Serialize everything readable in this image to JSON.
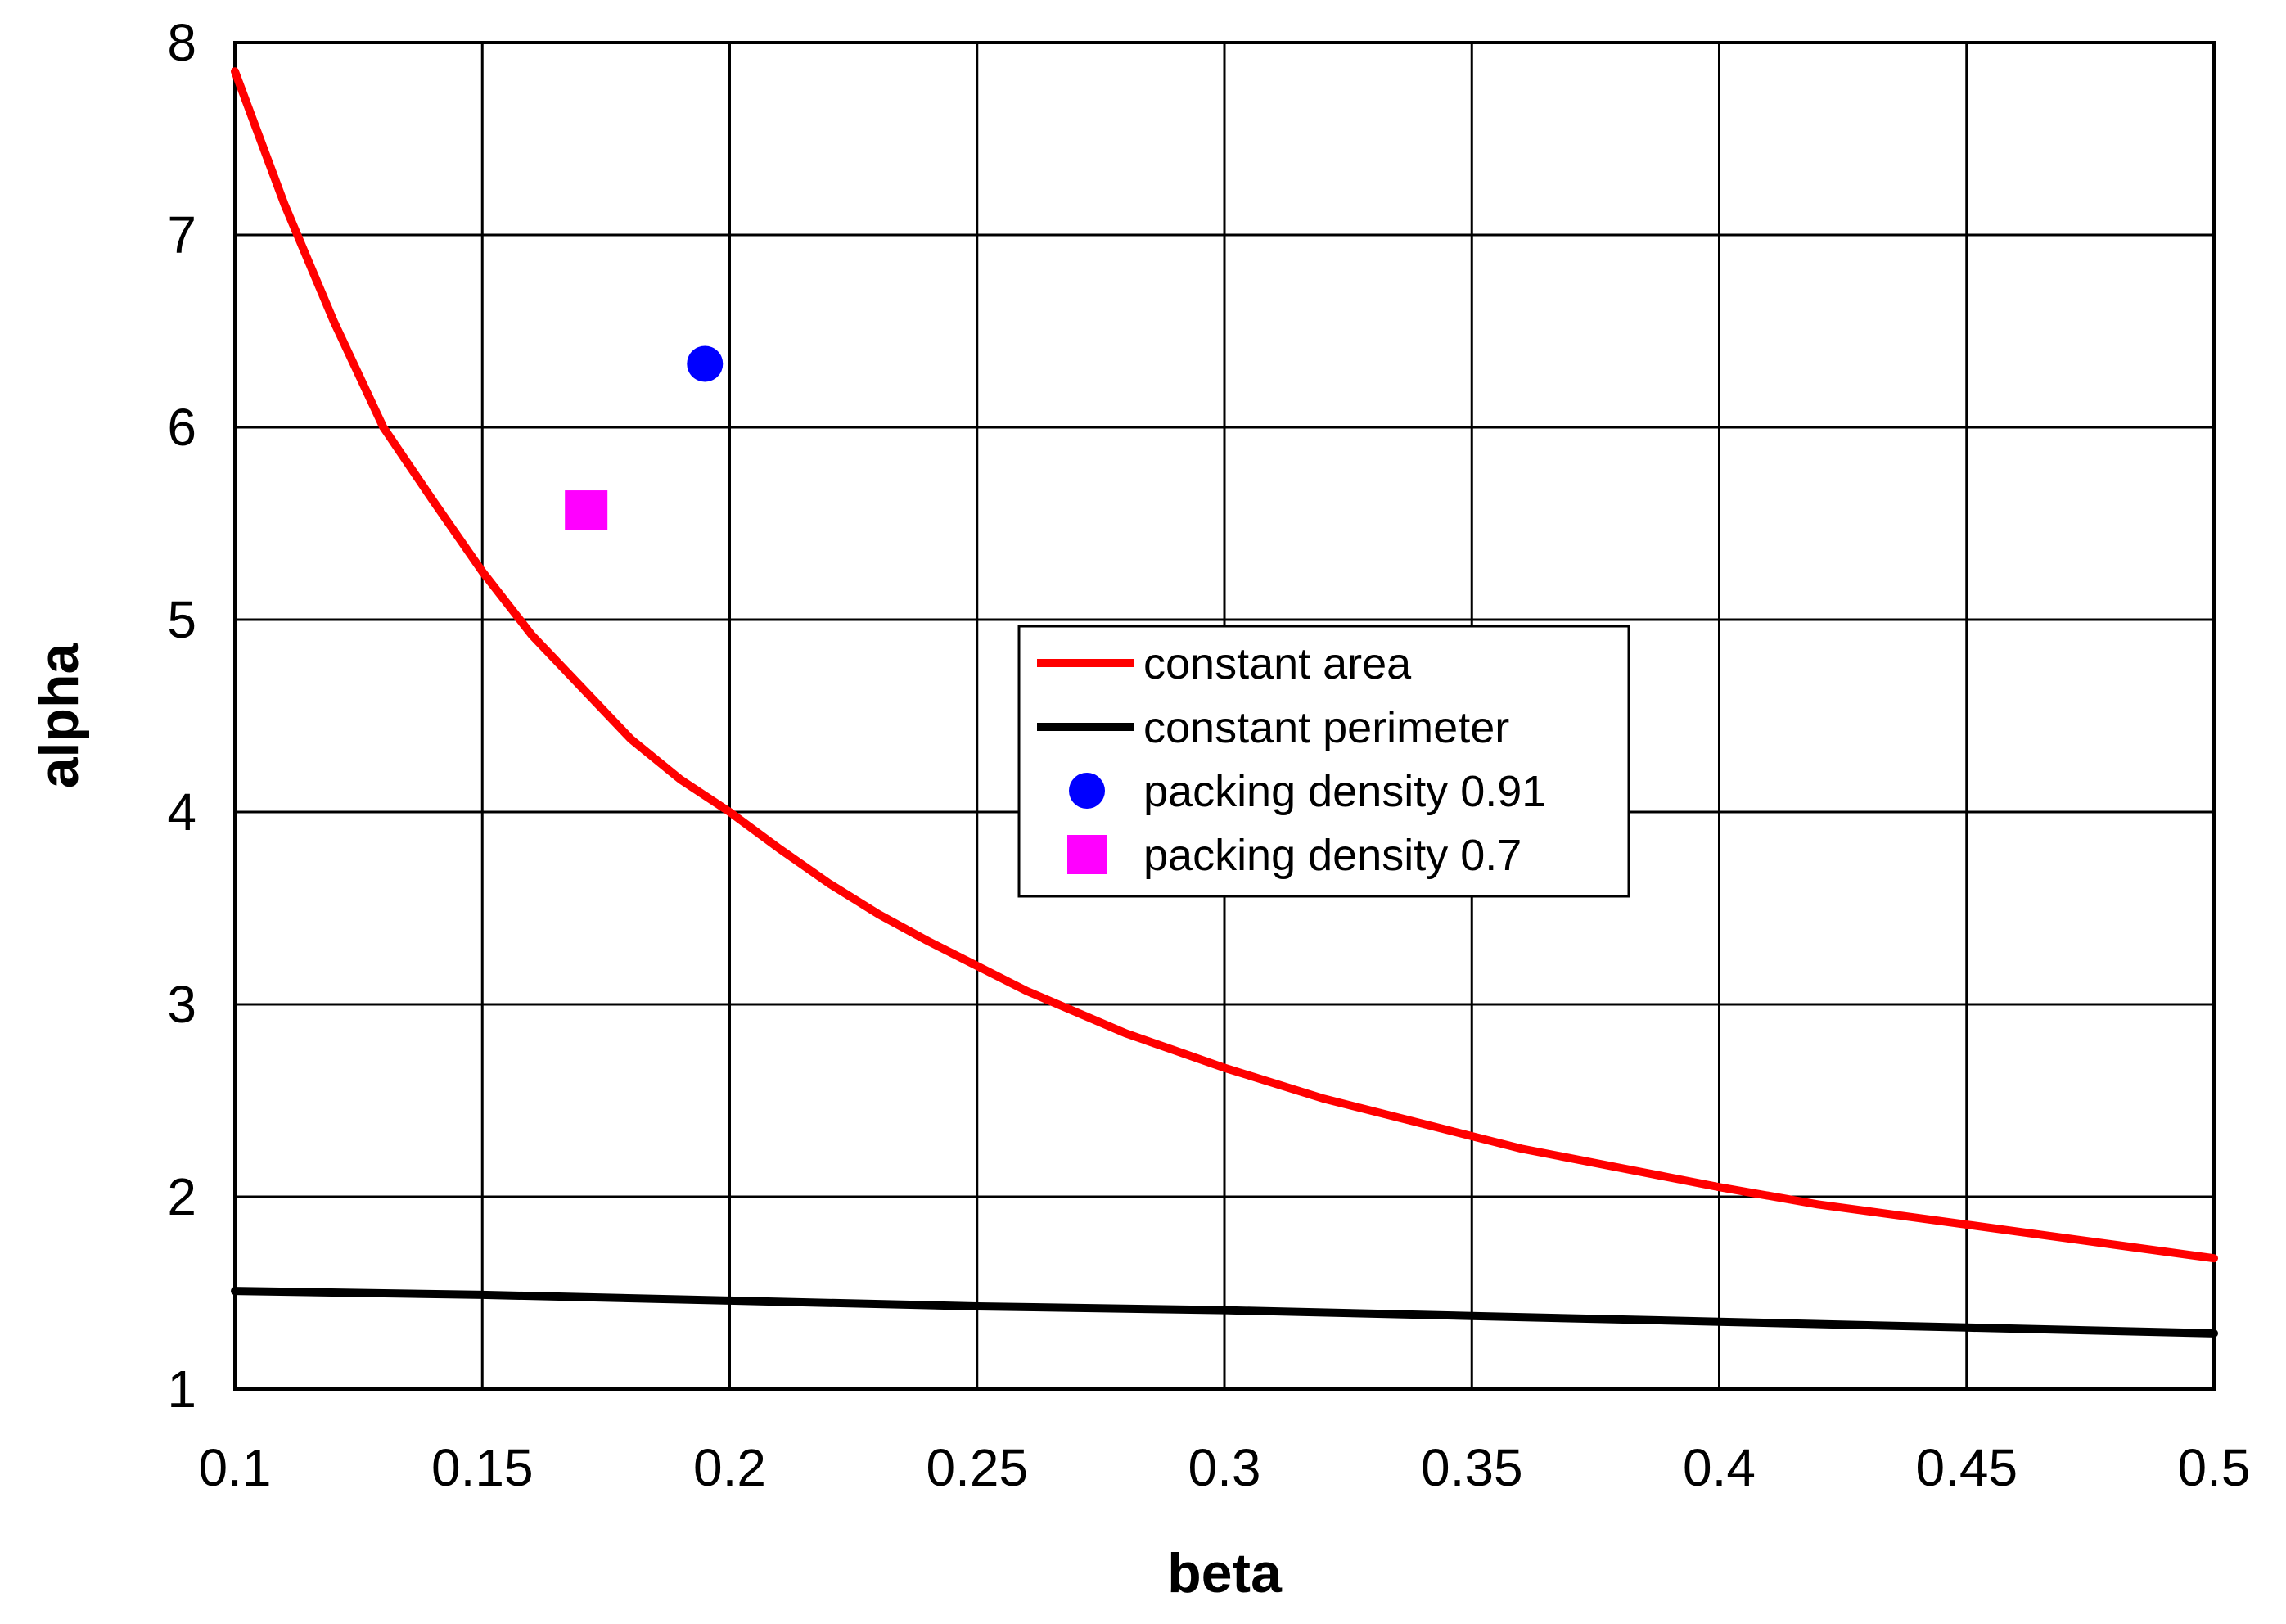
{
  "chart_data": {
    "type": "line",
    "title": "",
    "xlabel": "beta",
    "ylabel": "alpha",
    "xlim": [
      0.1,
      0.5
    ],
    "ylim": [
      1,
      8
    ],
    "grid": true,
    "legend_position": "center-right",
    "x_ticks": [
      0.1,
      0.15,
      0.2,
      0.25,
      0.3,
      0.35,
      0.4,
      0.45,
      0.5
    ],
    "x_tick_labels": [
      "0.1",
      "0.15",
      "0.2",
      "0.25",
      "0.3",
      "0.35",
      "0.4",
      "0.45",
      "0.5"
    ],
    "y_ticks": [
      1,
      2,
      3,
      4,
      5,
      6,
      7,
      8
    ],
    "y_tick_labels": [
      "1",
      "2",
      "3",
      "4",
      "5",
      "6",
      "7",
      "8"
    ],
    "series": [
      {
        "name": "constant area",
        "kind": "line",
        "color": "#ff0000",
        "x": [
          0.1,
          0.11,
          0.12,
          0.13,
          0.14,
          0.15,
          0.16,
          0.17,
          0.18,
          0.19,
          0.2,
          0.21,
          0.22,
          0.23,
          0.24,
          0.25,
          0.26,
          0.27,
          0.28,
          0.29,
          0.3,
          0.32,
          0.34,
          0.36,
          0.38,
          0.4,
          0.42,
          0.44,
          0.46,
          0.48,
          0.5
        ],
        "y": [
          7.85,
          7.16,
          6.55,
          6.0,
          5.62,
          5.25,
          4.92,
          4.65,
          4.38,
          4.17,
          4.0,
          3.81,
          3.63,
          3.47,
          3.33,
          3.2,
          3.07,
          2.96,
          2.85,
          2.76,
          2.67,
          2.51,
          2.38,
          2.25,
          2.15,
          2.05,
          1.96,
          1.89,
          1.82,
          1.75,
          1.68
        ]
      },
      {
        "name": "constant perimeter",
        "kind": "line",
        "color": "#000000",
        "x": [
          0.1,
          0.15,
          0.2,
          0.25,
          0.3,
          0.35,
          0.4,
          0.45,
          0.5
        ],
        "y": [
          1.51,
          1.49,
          1.46,
          1.43,
          1.41,
          1.38,
          1.35,
          1.32,
          1.29
        ]
      },
      {
        "name": "packing density 0.91",
        "kind": "point",
        "marker": "circle",
        "color": "#0000ff",
        "x": [
          0.195
        ],
        "y": [
          6.33
        ]
      },
      {
        "name": "packing density 0.7",
        "kind": "point",
        "marker": "square",
        "color": "#ff00ff",
        "x": [
          0.171
        ],
        "y": [
          5.57
        ]
      }
    ]
  }
}
